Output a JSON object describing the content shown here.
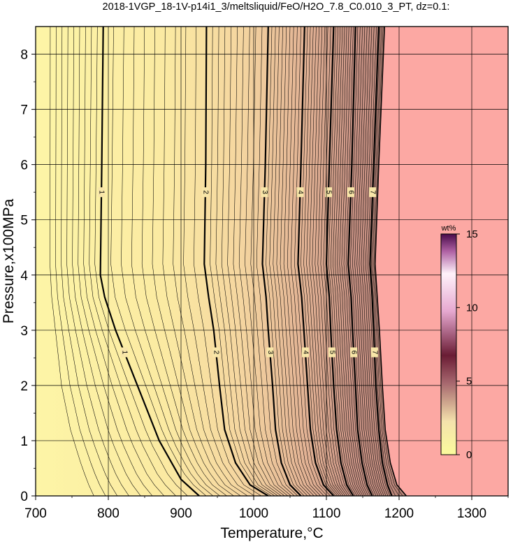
{
  "chart_data": {
    "type": "contour",
    "title": "2018-1VGP_18-1V-p14i1_3/meltsliquid/FeO/H2O_7.8_C0.010_3_PT, dz=0.1:",
    "xlabel": "Temperature,°C",
    "ylabel": "Pressure,x100MPa",
    "xlim": [
      700,
      1350
    ],
    "ylim": [
      0,
      8.5
    ],
    "x_ticks": [
      700,
      800,
      900,
      1000,
      1100,
      1200,
      1300
    ],
    "y_ticks": [
      0,
      1,
      2,
      3,
      4,
      5,
      6,
      7,
      8
    ],
    "grid": true,
    "contour_interval": 0.1,
    "labeled_contours": [
      {
        "level": "1",
        "points": [
          [
            793,
            8.5
          ],
          [
            791,
            6.0
          ],
          [
            789,
            4.0
          ],
          [
            795,
            3.6
          ],
          [
            810,
            3.0
          ],
          [
            840,
            2.0
          ],
          [
            870,
            1.0
          ],
          [
            900,
            0.3
          ],
          [
            925,
            0.0
          ]
        ]
      },
      {
        "level": "2",
        "points": [
          [
            935,
            8.5
          ],
          [
            934,
            6.0
          ],
          [
            932,
            4.2
          ],
          [
            938,
            3.6
          ],
          [
            945,
            3.0
          ],
          [
            953,
            2.0
          ],
          [
            960,
            1.2
          ],
          [
            975,
            0.6
          ],
          [
            995,
            0.2
          ],
          [
            1020,
            0.0
          ]
        ]
      },
      {
        "level": "3",
        "points": [
          [
            1020,
            8.5
          ],
          [
            1016,
            6.0
          ],
          [
            1012,
            4.2
          ],
          [
            1017,
            3.6
          ],
          [
            1020,
            3.0
          ],
          [
            1026,
            2.0
          ],
          [
            1030,
            1.2
          ],
          [
            1038,
            0.6
          ],
          [
            1050,
            0.2
          ],
          [
            1065,
            0.0
          ]
        ]
      },
      {
        "level": "4",
        "points": [
          [
            1070,
            8.5
          ],
          [
            1065,
            6.0
          ],
          [
            1061,
            4.2
          ],
          [
            1066,
            3.6
          ],
          [
            1069,
            3.0
          ],
          [
            1074,
            2.0
          ],
          [
            1078,
            1.2
          ],
          [
            1085,
            0.6
          ],
          [
            1096,
            0.2
          ],
          [
            1110,
            0.0
          ]
        ]
      },
      {
        "level": "5",
        "points": [
          [
            1110,
            8.5
          ],
          [
            1104,
            6.0
          ],
          [
            1100,
            4.2
          ],
          [
            1104,
            3.6
          ],
          [
            1106,
            3.0
          ],
          [
            1110,
            2.0
          ],
          [
            1114,
            1.2
          ],
          [
            1120,
            0.6
          ],
          [
            1128,
            0.2
          ],
          [
            1137,
            0.0
          ]
        ]
      },
      {
        "level": "6",
        "points": [
          [
            1140,
            8.5
          ],
          [
            1135,
            6.0
          ],
          [
            1130,
            4.2
          ],
          [
            1134,
            3.6
          ],
          [
            1136,
            3.0
          ],
          [
            1140,
            2.0
          ],
          [
            1143,
            1.2
          ],
          [
            1149,
            0.6
          ],
          [
            1156,
            0.2
          ],
          [
            1163,
            0.0
          ]
        ]
      },
      {
        "level": "7",
        "points": [
          [
            1172,
            8.5
          ],
          [
            1165,
            6.0
          ],
          [
            1160,
            4.2
          ],
          [
            1163,
            3.6
          ],
          [
            1165,
            3.0
          ],
          [
            1168,
            2.0
          ],
          [
            1172,
            1.2
          ],
          [
            1177,
            0.6
          ],
          [
            1184,
            0.2
          ],
          [
            1190,
            0.0
          ]
        ]
      }
    ],
    "liquidus_boundary": [
      [
        1180,
        8.5
      ],
      [
        1172,
        6.0
      ],
      [
        1167,
        4.2
      ],
      [
        1170,
        3.6
      ],
      [
        1173,
        3.0
      ],
      [
        1177,
        2.0
      ],
      [
        1181,
        1.2
      ],
      [
        1188,
        0.6
      ],
      [
        1197,
        0.2
      ],
      [
        1210,
        0.0
      ]
    ],
    "fill_colors": {
      "low": "#fdf5a6",
      "mid": "#f4d2a0",
      "high": "#c79184",
      "no_data": "#fca8a3"
    },
    "colorbar": {
      "unit": "wt%",
      "ticks": [
        0,
        5,
        10,
        15
      ],
      "range": [
        0,
        15
      ],
      "colors": [
        "#fbfb9c",
        "#f6e0a8",
        "#a4646c",
        "#6a1c34",
        "#e6a8d0",
        "#fff2fa",
        "#4a0a4a"
      ]
    }
  }
}
